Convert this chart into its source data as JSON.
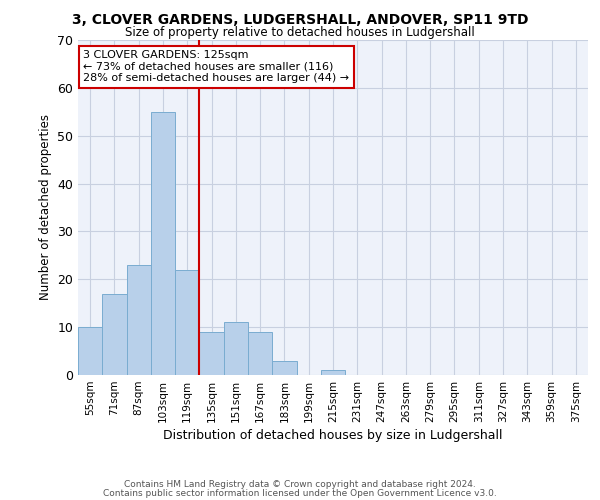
{
  "title": "3, CLOVER GARDENS, LUDGERSHALL, ANDOVER, SP11 9TD",
  "subtitle": "Size of property relative to detached houses in Ludgershall",
  "xlabel": "Distribution of detached houses by size in Ludgershall",
  "ylabel": "Number of detached properties",
  "bin_labels": [
    "55sqm",
    "71sqm",
    "87sqm",
    "103sqm",
    "119sqm",
    "135sqm",
    "151sqm",
    "167sqm",
    "183sqm",
    "199sqm",
    "215sqm",
    "231sqm",
    "247sqm",
    "263sqm",
    "279sqm",
    "295sqm",
    "311sqm",
    "327sqm",
    "343sqm",
    "359sqm",
    "375sqm"
  ],
  "bar_values": [
    10,
    17,
    23,
    55,
    22,
    9,
    11,
    9,
    3,
    0,
    1,
    0,
    0,
    0,
    0,
    0,
    0,
    0,
    0,
    0,
    0
  ],
  "bar_color": "#b8d0ea",
  "bar_edgecolor": "#7aacd0",
  "highlight_line_color": "#cc0000",
  "annotation_text": "3 CLOVER GARDENS: 125sqm\n← 73% of detached houses are smaller (116)\n28% of semi-detached houses are larger (44) →",
  "annotation_box_color": "#ffffff",
  "annotation_box_edgecolor": "#cc0000",
  "ylim": [
    0,
    70
  ],
  "yticks": [
    0,
    10,
    20,
    30,
    40,
    50,
    60,
    70
  ],
  "grid_color": "#c8d0e0",
  "background_color": "#eef2fa",
  "footer_line1": "Contains HM Land Registry data © Crown copyright and database right 2024.",
  "footer_line2": "Contains public sector information licensed under the Open Government Licence v3.0."
}
